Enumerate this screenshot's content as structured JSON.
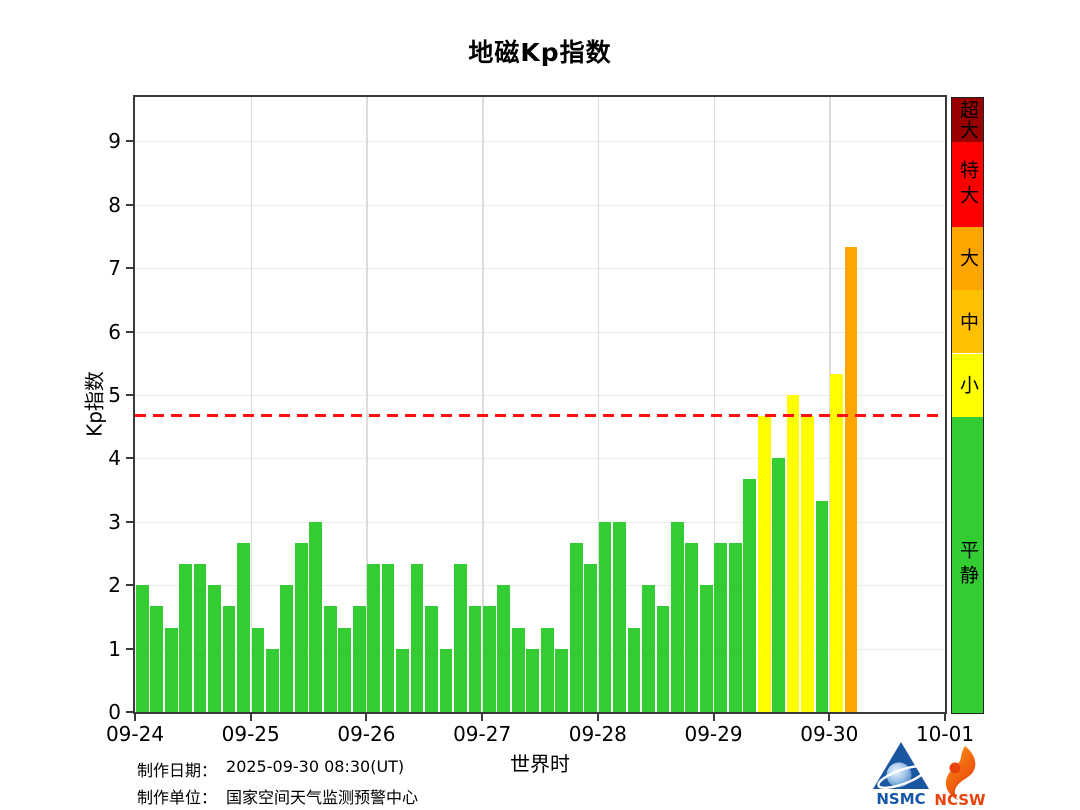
{
  "title": "地磁Kp指数",
  "chart_data": {
    "type": "bar",
    "title": "地磁Kp指数",
    "xlabel": "世界时",
    "ylabel": "Kp指数",
    "ylim": [
      0,
      9.7
    ],
    "yticks": [
      0,
      1,
      2,
      3,
      4,
      5,
      6,
      7,
      8,
      9
    ],
    "x_tick_labels": [
      "09-24",
      "09-25",
      "09-26",
      "09-27",
      "09-28",
      "09-29",
      "09-30",
      "10-01"
    ],
    "slots_per_day": 8,
    "grid": true,
    "legend_position": "right-colorbar",
    "series": [
      {
        "name": "Kp",
        "values": [
          2.0,
          1.67,
          1.33,
          2.33,
          2.33,
          2.0,
          1.67,
          2.67,
          1.33,
          1.0,
          2.0,
          2.67,
          3.0,
          1.67,
          1.33,
          1.67,
          2.33,
          2.33,
          1.0,
          2.33,
          1.67,
          1.0,
          2.33,
          1.67,
          1.67,
          2.0,
          1.33,
          1.0,
          1.33,
          1.0,
          2.67,
          2.33,
          3.0,
          3.0,
          1.33,
          2.0,
          1.67,
          3.0,
          2.67,
          2.0,
          2.67,
          2.67,
          3.67,
          4.67,
          4.0,
          5.0,
          4.67,
          3.33,
          5.33,
          7.33
        ]
      }
    ],
    "threshold_line": {
      "value": 4.67,
      "color": "#ff0f0f",
      "style": "dashed"
    },
    "color_scale": [
      {
        "label": "超大",
        "min": 9.0,
        "max": 9.7,
        "color": "#990000"
      },
      {
        "label": "特大",
        "min": 7.67,
        "max": 9.0,
        "color": "#ff0000"
      },
      {
        "label": "大",
        "min": 6.67,
        "max": 7.67,
        "color": "#ffa500"
      },
      {
        "label": "中",
        "min": 5.67,
        "max": 6.67,
        "color": "#ffc000"
      },
      {
        "label": "小",
        "min": 4.67,
        "max": 5.67,
        "color": "#ffff00"
      },
      {
        "label": "平静",
        "min": 0,
        "max": 4.67,
        "color": "#33cc33"
      }
    ]
  },
  "footer": {
    "made_date_label": "制作日期：",
    "made_date": "2025-09-30 08:30(UT)",
    "made_by_label": "制作单位：",
    "made_by": "国家空间天气监测预警中心",
    "logos": [
      {
        "label": "NSMC",
        "color": "#1556a5"
      },
      {
        "label": "NCSW",
        "color": "#e8440c"
      }
    ]
  }
}
